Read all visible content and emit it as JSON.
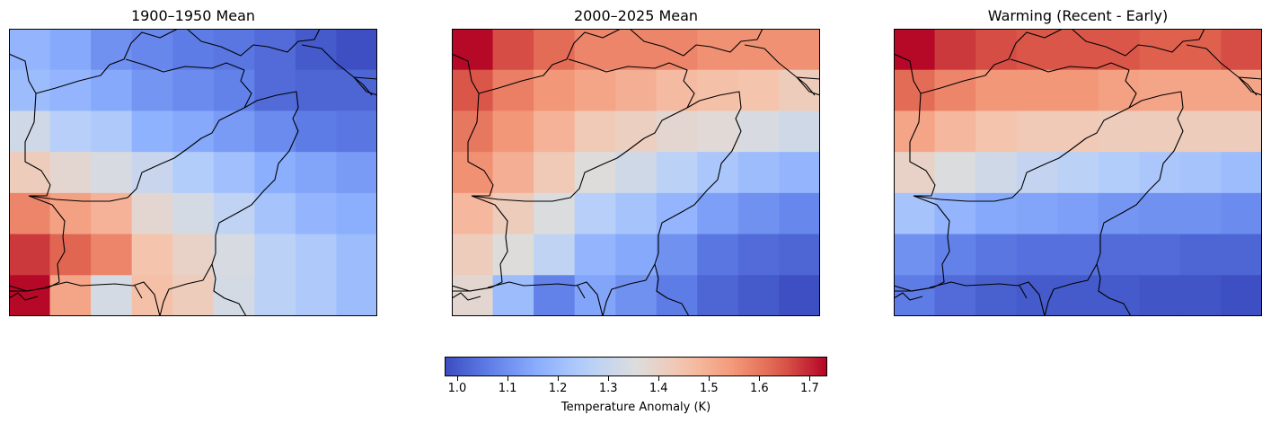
{
  "panels": [
    {
      "title": "1900–1950 Mean",
      "grid": [
        [
          1.18,
          1.15,
          1.1,
          1.08,
          1.06,
          1.05,
          1.03,
          1.0,
          0.98
        ],
        [
          1.2,
          1.18,
          1.15,
          1.11,
          1.09,
          1.07,
          1.03,
          1.02,
          1.02
        ],
        [
          1.32,
          1.26,
          1.24,
          1.17,
          1.15,
          1.12,
          1.09,
          1.06,
          1.05
        ],
        [
          1.42,
          1.38,
          1.34,
          1.3,
          1.25,
          1.21,
          1.16,
          1.14,
          1.12
        ],
        [
          1.58,
          1.53,
          1.49,
          1.38,
          1.33,
          1.28,
          1.22,
          1.18,
          1.16
        ],
        [
          1.68,
          1.63,
          1.58,
          1.45,
          1.4,
          1.34,
          1.27,
          1.24,
          1.2
        ],
        [
          1.73,
          1.52,
          1.33,
          1.46,
          1.42,
          1.33,
          1.27,
          1.24,
          1.2
        ]
      ]
    },
    {
      "title": "2000–2025 Mean",
      "grid": [
        [
          1.73,
          1.66,
          1.62,
          1.58,
          1.58,
          1.58,
          1.56,
          1.56,
          1.56
        ],
        [
          1.65,
          1.59,
          1.55,
          1.52,
          1.5,
          1.47,
          1.46,
          1.45,
          1.42
        ],
        [
          1.6,
          1.55,
          1.49,
          1.43,
          1.41,
          1.38,
          1.37,
          1.34,
          1.32
        ],
        [
          1.56,
          1.5,
          1.43,
          1.36,
          1.32,
          1.27,
          1.23,
          1.2,
          1.18
        ],
        [
          1.48,
          1.42,
          1.35,
          1.26,
          1.22,
          1.18,
          1.13,
          1.1,
          1.08
        ],
        [
          1.42,
          1.36,
          1.28,
          1.18,
          1.15,
          1.1,
          1.05,
          1.03,
          1.02
        ],
        [
          1.38,
          1.2,
          1.07,
          1.14,
          1.1,
          1.06,
          1.02,
          1.0,
          0.98
        ]
      ]
    },
    {
      "title": "Warming (Recent - Early)",
      "grid": [
        [
          1.73,
          1.68,
          1.66,
          1.65,
          1.65,
          1.65,
          1.64,
          1.64,
          1.66
        ],
        [
          1.62,
          1.58,
          1.55,
          1.55,
          1.55,
          1.53,
          1.52,
          1.52,
          1.52
        ],
        [
          1.52,
          1.48,
          1.45,
          1.43,
          1.43,
          1.42,
          1.42,
          1.42,
          1.42
        ],
        [
          1.4,
          1.35,
          1.32,
          1.29,
          1.27,
          1.25,
          1.23,
          1.22,
          1.2
        ],
        [
          1.22,
          1.18,
          1.15,
          1.14,
          1.13,
          1.11,
          1.1,
          1.1,
          1.09
        ],
        [
          1.1,
          1.07,
          1.05,
          1.04,
          1.04,
          1.03,
          1.03,
          1.02,
          1.02
        ],
        [
          1.06,
          1.03,
          1.01,
          1.0,
          1.0,
          1.0,
          0.99,
          0.99,
          0.98
        ]
      ]
    }
  ],
  "colorbar": {
    "label": "Temperature Anomaly (K)",
    "ticks": [
      "1.0",
      "1.1",
      "1.2",
      "1.3",
      "1.4",
      "1.5",
      "1.6",
      "1.7"
    ],
    "tick_values": [
      1.0,
      1.1,
      1.2,
      1.3,
      1.4,
      1.5,
      1.6,
      1.7
    ],
    "range": [
      0.975,
      1.735
    ],
    "colormap": "coolwarm"
  },
  "colors": {
    "low": "#3b4cc0",
    "mid": "#dddddd",
    "high": "#b40426",
    "border_line": "#000000"
  }
}
